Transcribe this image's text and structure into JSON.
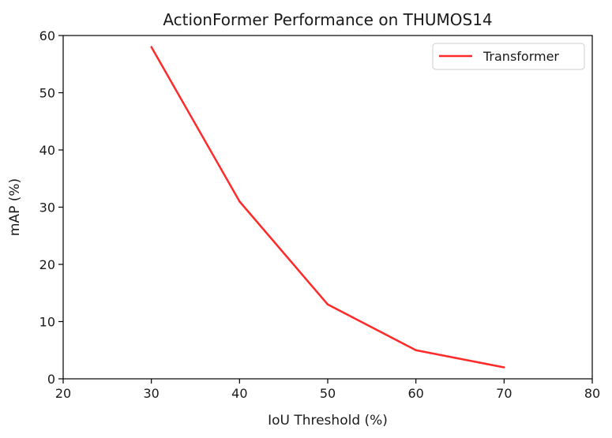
{
  "chart_data": {
    "type": "line",
    "title": "ActionFormer Performance on THUMOS14",
    "xlabel": "IoU Threshold (%)",
    "ylabel": "mAP (%)",
    "xlim": [
      20,
      80
    ],
    "ylim": [
      0,
      60
    ],
    "x_ticks": [
      20,
      30,
      40,
      50,
      60,
      70,
      80
    ],
    "y_ticks": [
      0,
      10,
      20,
      30,
      40,
      50,
      60
    ],
    "grid": false,
    "legend_position": "top-right",
    "series": [
      {
        "name": "Transformer",
        "color": "#ff2a2a",
        "x": [
          30,
          40,
          50,
          60,
          70
        ],
        "y": [
          58,
          31,
          13,
          5,
          2
        ]
      }
    ]
  }
}
